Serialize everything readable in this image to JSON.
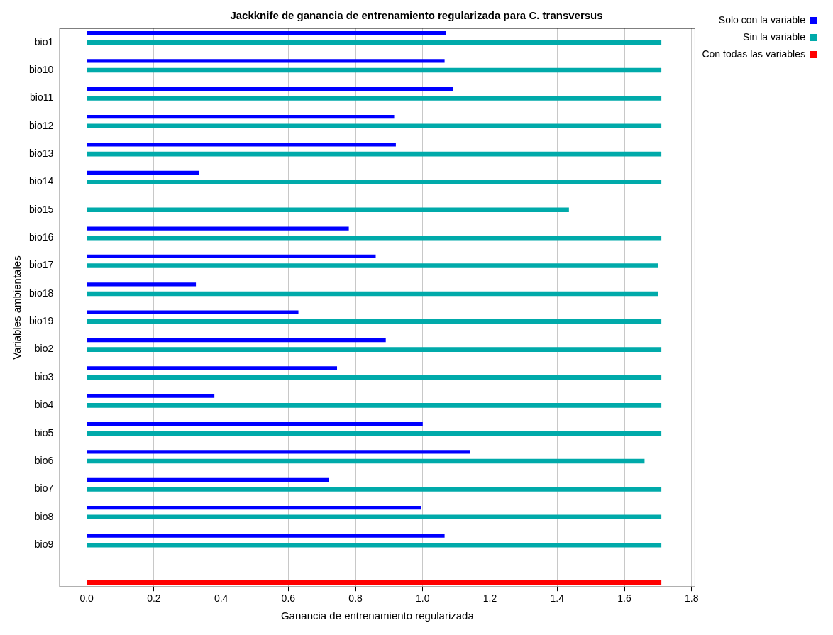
{
  "chart_data": {
    "type": "bar",
    "orientation": "horizontal",
    "title": "Jackknife de ganancia de entrenamiento regularizada para C. transversus",
    "xlabel": "Ganancia de entrenamiento regularizada",
    "ylabel": "Variables ambientales",
    "categories": [
      "bio1",
      "bio10",
      "bio11",
      "bio12",
      "bio13",
      "bio14",
      "bio15",
      "bio16",
      "bio17",
      "bio18",
      "bio19",
      "bio2",
      "bio3",
      "bio4",
      "bio5",
      "bio6",
      "bio7",
      "bio8",
      "bio9",
      null
    ],
    "series": [
      {
        "name": "Sin la variable",
        "color": "#00aaaa",
        "values": [
          1.71,
          1.71,
          1.71,
          1.71,
          1.71,
          1.71,
          1.435,
          1.71,
          1.7,
          1.7,
          1.71,
          1.71,
          1.71,
          1.71,
          1.71,
          1.66,
          1.71,
          1.71,
          1.71,
          null
        ]
      },
      {
        "name": "Solo con la variable",
        "color": "#0000ff",
        "values": [
          1.07,
          1.065,
          1.09,
          0.915,
          0.92,
          0.335,
          null,
          0.78,
          0.86,
          0.325,
          0.63,
          0.89,
          0.745,
          0.38,
          1.0,
          1.14,
          0.72,
          0.995,
          1.065,
          null
        ]
      },
      {
        "name": "Con todas las variables",
        "color": "#ff0000",
        "values": [
          null,
          null,
          null,
          null,
          null,
          null,
          null,
          null,
          null,
          null,
          null,
          null,
          null,
          null,
          null,
          null,
          null,
          null,
          null,
          1.71
        ]
      }
    ],
    "xlim": [
      -0.08,
      1.81
    ],
    "xticks": [
      {
        "value": 0,
        "label": "0.0"
      },
      0.2,
      0.4,
      0.6,
      0.8,
      {
        "value": 1,
        "label": "1.0"
      },
      1.2,
      1.4,
      1.6,
      1.8
    ],
    "grid": "x",
    "legend": "top right"
  }
}
